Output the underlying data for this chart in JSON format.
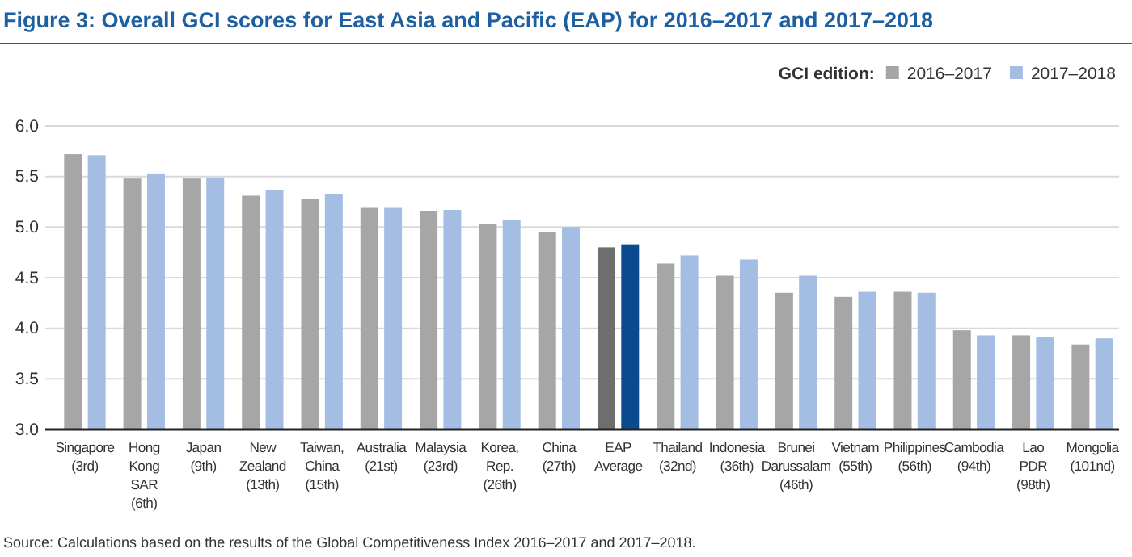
{
  "chart_data": {
    "type": "bar",
    "title": "Figure 3: Overall GCI scores for East Asia and Pacific (EAP) for 2016–2017 and 2017–2018",
    "categories": [
      "Singapore\n(3rd)",
      "Hong\nKong\nSAR\n(6th)",
      "Japan\n(9th)",
      "New\nZealand\n(13th)",
      "Taiwan,\nChina\n(15th)",
      "Australia\n(21st)",
      "Malaysia\n(23rd)",
      "Korea,\nRep.\n(26th)",
      "China\n(27th)",
      "EAP\nAverage",
      "Thailand\n(32nd)",
      "Indonesia\n(36th)",
      "Brunei\nDarussalam\n(46th)",
      "Vietnam\n(55th)",
      "Philippines\n(56th)",
      "Cambodia\n(94th)",
      "Lao\nPDR\n(98th)",
      "Mongolia\n(101nd)"
    ],
    "series": [
      {
        "name": "2016–2017",
        "color": "#a6a6a6",
        "colors": [
          "#a6a6a6",
          "#a6a6a6",
          "#a6a6a6",
          "#a6a6a6",
          "#a6a6a6",
          "#a6a6a6",
          "#a6a6a6",
          "#a6a6a6",
          "#a6a6a6",
          "#6e6e6e",
          "#a6a6a6",
          "#a6a6a6",
          "#a6a6a6",
          "#a6a6a6",
          "#a6a6a6",
          "#a6a6a6",
          "#a6a6a6",
          "#a6a6a6"
        ],
        "values": [
          5.72,
          5.48,
          5.48,
          5.31,
          5.28,
          5.19,
          5.16,
          5.03,
          4.95,
          4.8,
          4.64,
          4.52,
          4.35,
          4.31,
          4.36,
          3.98,
          3.93,
          3.84
        ]
      },
      {
        "name": "2017–2018",
        "color": "#a3bde3",
        "colors": [
          "#a3bde3",
          "#a3bde3",
          "#a3bde3",
          "#a3bde3",
          "#a3bde3",
          "#a3bde3",
          "#a3bde3",
          "#a3bde3",
          "#a3bde3",
          "#0b4a8e",
          "#a3bde3",
          "#a3bde3",
          "#a3bde3",
          "#a3bde3",
          "#a3bde3",
          "#a3bde3",
          "#a3bde3",
          "#a3bde3"
        ],
        "values": [
          5.71,
          5.53,
          5.49,
          5.37,
          5.33,
          5.19,
          5.17,
          5.07,
          5.0,
          4.83,
          4.72,
          4.68,
          4.52,
          4.36,
          4.35,
          3.93,
          3.91,
          3.9
        ]
      }
    ],
    "legend_title": "GCI edition:",
    "ylim": [
      3.0,
      6.0
    ],
    "yticks": [
      {
        "value": 3.0,
        "label": "3.0"
      },
      {
        "value": 3.5,
        "label": "3.5"
      },
      {
        "value": 4.0,
        "label": "4.0"
      },
      {
        "value": 4.5,
        "label": "4.5"
      },
      {
        "value": 5.0,
        "label": "5.0"
      },
      {
        "value": 5.5,
        "label": "5.5"
      },
      {
        "value": 6.0,
        "label": "6.0"
      }
    ],
    "grid": "y",
    "legend": "top right",
    "annotations": [
      "Source: Calculations based on the results of the Global Competitiveness Index 2016–2017 and 2017–2018."
    ]
  }
}
